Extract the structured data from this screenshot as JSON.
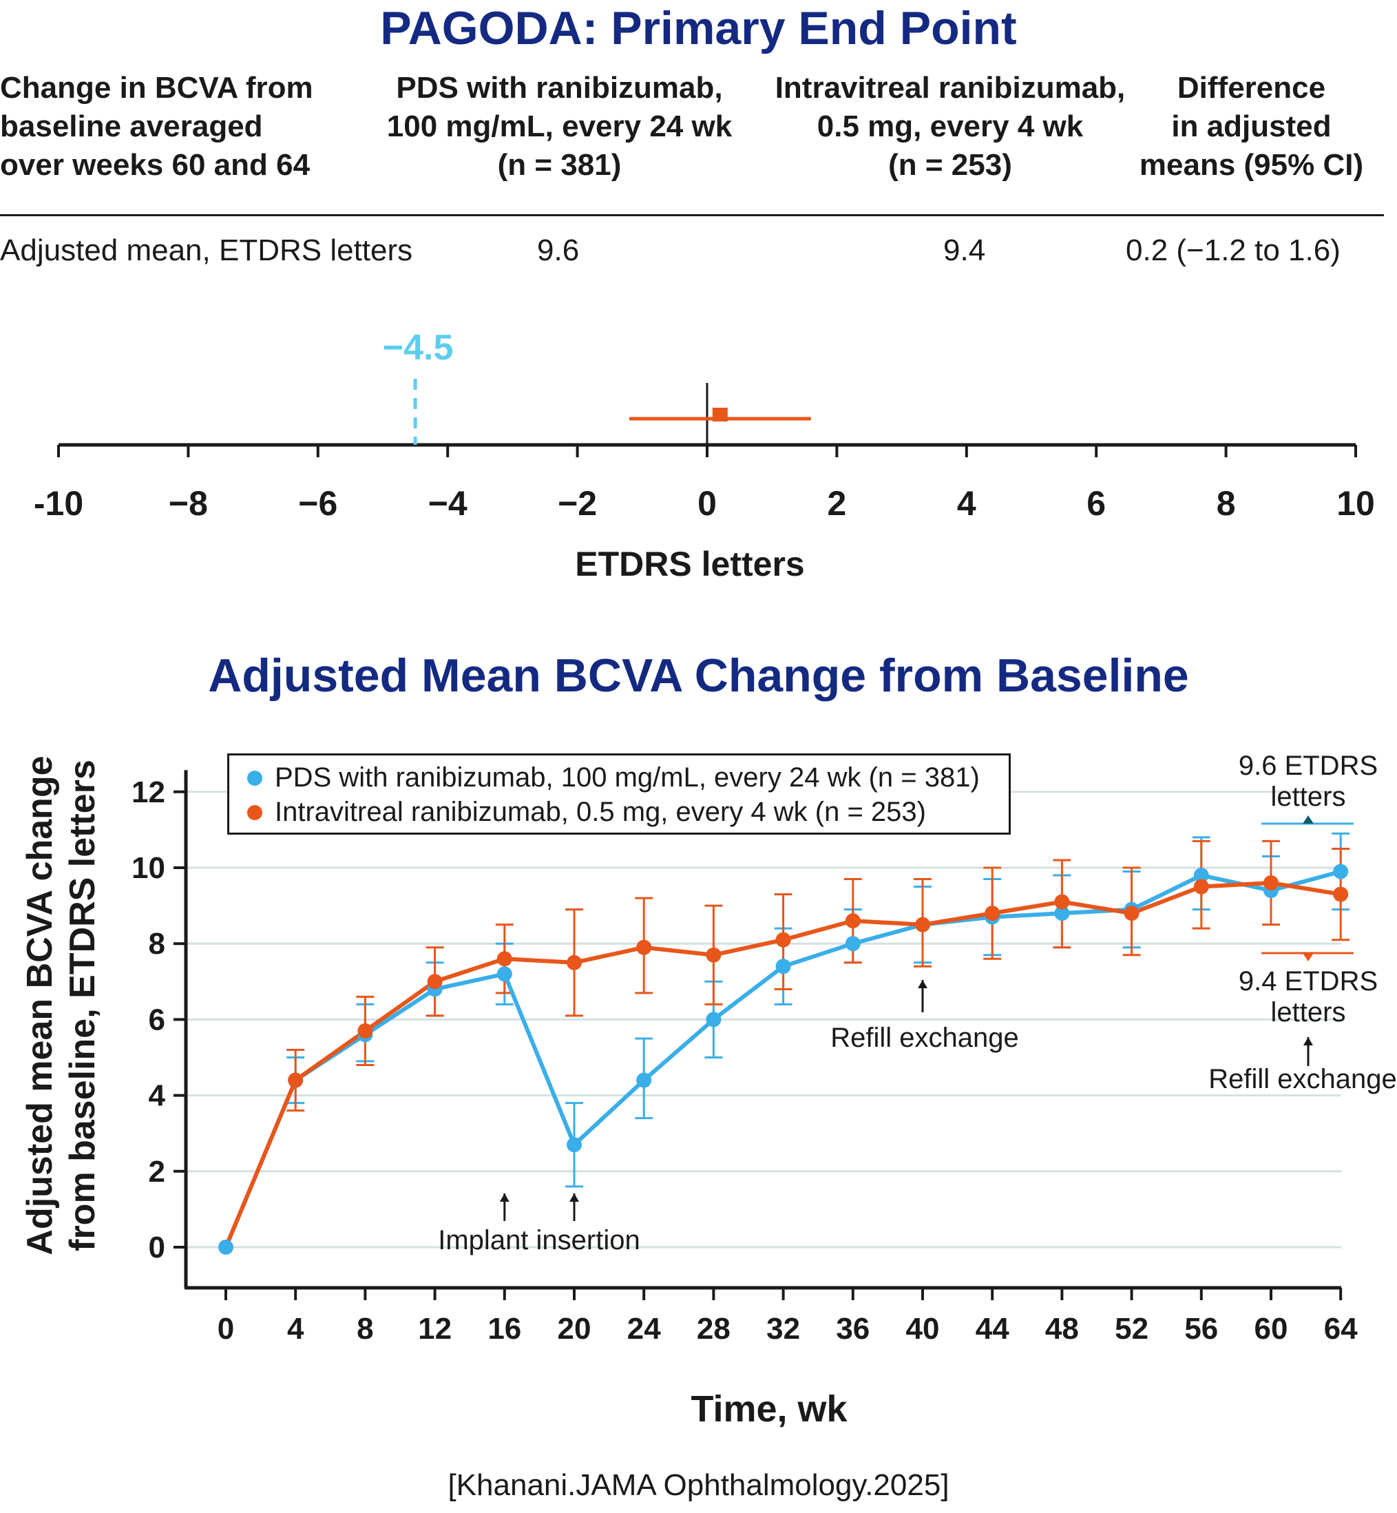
{
  "titles": {
    "primary": "PAGODA: Primary End Point",
    "secondary": "Adjusted Mean BCVA Change from Baseline"
  },
  "table": {
    "headers": [
      "Change in BCVA from\nbaseline averaged\nover weeks 60 and 64",
      "PDS with ranibizumab,\n100 mg/mL, every 24 wk\n(n = 381)",
      "Intravitreal ranibizumab,\n0.5 mg, every 4 wk\n(n = 253)",
      "Difference\nin adjusted\nmeans (95% CI)"
    ],
    "row": {
      "label": "Adjusted mean, ETDRS letters",
      "pds": "9.6",
      "ivt": "9.4",
      "difference": "0.2 (−1.2 to 1.6)"
    }
  },
  "source": "[Khanani.JAMA Ophthalmology.2025]",
  "colors": {
    "title": "#142a82",
    "pds": "#3aaee8",
    "ivt": "#e8561a",
    "margin": "#5ccdf0",
    "grid": "#d4e0e2"
  },
  "chart_data": [
    {
      "type": "forest",
      "xlabel": "ETDRS letters",
      "xlim": [
        -10,
        10
      ],
      "xticks": [
        -10,
        -8,
        -6,
        -4,
        -2,
        0,
        2,
        4,
        6,
        8,
        10
      ],
      "xtick_labels": [
        "-10",
        "−8",
        "−6",
        "−4",
        "−2",
        "0",
        "2",
        "4",
        "6",
        "8",
        "10"
      ],
      "estimate": 0.2,
      "ci": [
        -1.2,
        1.6
      ],
      "noninferiority_margin": -4.5,
      "margin_label": "−4.5",
      "reference_line": 0
    },
    {
      "type": "line",
      "xlabel": "Time, wk",
      "ylabel": "Adjusted mean BCVA change from baseline, ETDRS letters",
      "x": [
        0,
        4,
        8,
        12,
        16,
        20,
        24,
        28,
        32,
        36,
        40,
        44,
        48,
        52,
        56,
        60,
        64
      ],
      "xlim": [
        -4,
        64
      ],
      "ylim": [
        -1,
        12.5
      ],
      "yticks": [
        0,
        2,
        4,
        6,
        8,
        10,
        12
      ],
      "grid": true,
      "legend_position": "top-left",
      "series": [
        {
          "name": "PDS with ranibizumab, 100 mg/mL, every 24 wk (n = 381)",
          "color": "#3aaee8",
          "values": [
            0,
            4.4,
            5.6,
            6.8,
            7.2,
            2.7,
            4.4,
            6.0,
            7.4,
            8.0,
            8.5,
            8.7,
            8.8,
            8.9,
            9.8,
            9.4,
            9.9
          ],
          "ci_low": [
            null,
            3.8,
            4.9,
            6.1,
            6.4,
            1.6,
            3.4,
            5.0,
            6.4,
            7.5,
            7.5,
            7.7,
            7.9,
            7.9,
            8.9,
            8.5,
            8.9
          ],
          "ci_high": [
            null,
            5.0,
            6.4,
            7.5,
            8.0,
            3.8,
            5.5,
            7.0,
            8.4,
            8.9,
            9.5,
            9.7,
            9.8,
            9.9,
            10.8,
            10.3,
            10.9
          ]
        },
        {
          "name": "Intravitreal ranibizumab, 0.5 mg, every 4 wk (n = 253)",
          "color": "#e8561a",
          "values": [
            null,
            4.4,
            5.7,
            7.0,
            7.6,
            7.5,
            7.9,
            7.7,
            8.1,
            8.6,
            8.5,
            8.8,
            9.1,
            8.8,
            9.5,
            9.6,
            9.3
          ],
          "ci_low": [
            null,
            3.6,
            4.8,
            6.1,
            6.7,
            6.1,
            6.7,
            6.4,
            6.8,
            7.5,
            7.4,
            7.6,
            7.9,
            7.7,
            8.4,
            8.5,
            8.1
          ],
          "ci_high": [
            null,
            5.2,
            6.6,
            7.9,
            8.5,
            8.9,
            9.2,
            9.0,
            9.3,
            9.7,
            9.7,
            10.0,
            10.2,
            10.0,
            10.7,
            10.7,
            10.5
          ]
        }
      ],
      "annotations": {
        "implant_insertion": "Implant insertion",
        "refill_exchange_1": "Refill exchange",
        "refill_exchange_2": "Refill exchange",
        "pds_final_line1": "9.6 ETDRS",
        "pds_final_line2": "letters",
        "ivt_final_line1": "9.4 ETDRS",
        "ivt_final_line2": "letters",
        "arrow_up": "↑"
      }
    }
  ]
}
